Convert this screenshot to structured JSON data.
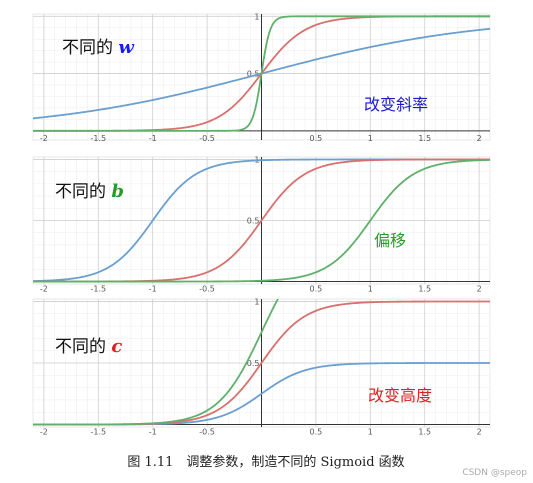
{
  "chart_data": [
    {
      "type": "line",
      "label_prefix": "不同的",
      "label_var": "w",
      "label_var_color": "#1a1aff",
      "annotation": "改变斜率",
      "annotation_color": "#1a1acc",
      "xlim": [
        -2.1,
        2.1
      ],
      "ylim": [
        -0.08,
        1.02
      ],
      "x_ticks": [
        {
          "v": -2,
          "label": "-2"
        },
        {
          "v": -1.5,
          "label": "-1.5"
        },
        {
          "v": -1,
          "label": "-1"
        },
        {
          "v": -0.5,
          "label": "-0.5"
        },
        {
          "v": 0.5,
          "label": "0.5"
        },
        {
          "v": 1,
          "label": "1"
        },
        {
          "v": 1.5,
          "label": "1.5"
        },
        {
          "v": 2,
          "label": "2"
        }
      ],
      "y_ticks": [
        {
          "v": 0.5,
          "label": "0.5"
        },
        {
          "v": 1,
          "label": "1"
        }
      ],
      "series": [
        {
          "color": "#6a9fd0",
          "w": 1,
          "b": 0,
          "c": 1
        },
        {
          "color": "#d8706e",
          "w": 5,
          "b": 0,
          "c": 1
        },
        {
          "color": "#5fb06a",
          "w": 25,
          "b": 0,
          "c": 1
        }
      ]
    },
    {
      "type": "line",
      "label_prefix": "不同的",
      "label_var": "b",
      "label_var_color": "#2a9a2a",
      "annotation": "偏移",
      "annotation_color": "#2a9a2a",
      "xlim": [
        -2.1,
        2.1
      ],
      "ylim": [
        -0.02,
        1.02
      ],
      "x_ticks": [
        {
          "v": -2,
          "label": "-2"
        },
        {
          "v": -1.5,
          "label": "-1.5"
        },
        {
          "v": -1,
          "label": "-1"
        },
        {
          "v": -0.5,
          "label": "-0.5"
        },
        {
          "v": 0.5,
          "label": "0.5"
        },
        {
          "v": 1,
          "label": "1"
        },
        {
          "v": 1.5,
          "label": "1.5"
        },
        {
          "v": 2,
          "label": "2"
        }
      ],
      "y_ticks": [
        {
          "v": 0.5,
          "label": "0.5"
        },
        {
          "v": 1,
          "label": "1"
        }
      ],
      "series": [
        {
          "color": "#6a9fd0",
          "w": 5,
          "b": 5,
          "c": 1
        },
        {
          "color": "#d8706e",
          "w": 5,
          "b": 0,
          "c": 1
        },
        {
          "color": "#5fb06a",
          "w": 5,
          "b": -5,
          "c": 1
        }
      ]
    },
    {
      "type": "line",
      "label_prefix": "不同的",
      "label_var": "c",
      "label_var_color": "#e02020",
      "annotation": "改变高度",
      "annotation_color": "#e02020",
      "xlim": [
        -2.1,
        2.1
      ],
      "ylim": [
        -0.02,
        1.02
      ],
      "x_ticks": [
        {
          "v": -2,
          "label": "-2"
        },
        {
          "v": -1.5,
          "label": "-1.5"
        },
        {
          "v": -1,
          "label": "-1"
        },
        {
          "v": -0.5,
          "label": "-0.5"
        },
        {
          "v": 0.5,
          "label": "0.5"
        },
        {
          "v": 1,
          "label": "1"
        },
        {
          "v": 1.5,
          "label": "1.5"
        },
        {
          "v": 2,
          "label": "2"
        }
      ],
      "y_ticks": [
        {
          "v": 0.5,
          "label": "0.5"
        },
        {
          "v": 1,
          "label": "1"
        }
      ],
      "series": [
        {
          "color": "#6a9fd0",
          "w": 5,
          "b": 0,
          "c": 0.5
        },
        {
          "color": "#d8706e",
          "w": 5,
          "b": 0,
          "c": 1
        },
        {
          "color": "#5fb06a",
          "w": 5,
          "b": 0,
          "c": 1.5
        }
      ]
    }
  ],
  "caption": "图 1.11　调整参数，制造不同的 Sigmoid 函数",
  "watermark": "CSDN @speop"
}
